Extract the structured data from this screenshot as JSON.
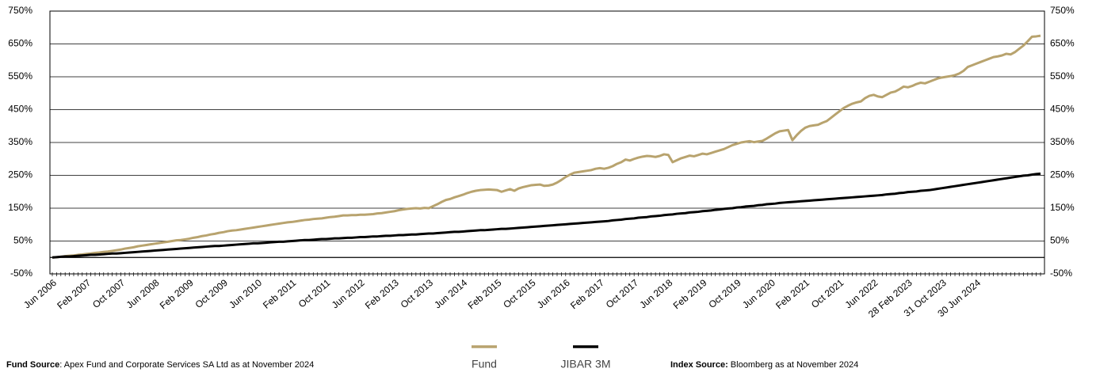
{
  "chart_data": {
    "type": "line",
    "categories": [
      "Jun 2006",
      null,
      null,
      null,
      null,
      null,
      null,
      null,
      "Feb 2007",
      null,
      null,
      null,
      null,
      null,
      null,
      null,
      "Oct 2007",
      null,
      null,
      null,
      null,
      null,
      null,
      null,
      "Jun 2008",
      null,
      null,
      null,
      null,
      null,
      null,
      null,
      "Feb 2009",
      null,
      null,
      null,
      null,
      null,
      null,
      null,
      "Oct 2009",
      null,
      null,
      null,
      null,
      null,
      null,
      null,
      "Jun 2010",
      null,
      null,
      null,
      null,
      null,
      null,
      null,
      "Feb 2011",
      null,
      null,
      null,
      null,
      null,
      null,
      null,
      "Oct 2011",
      null,
      null,
      null,
      null,
      null,
      null,
      null,
      "Jun 2012",
      null,
      null,
      null,
      null,
      null,
      null,
      null,
      "Feb 2013",
      null,
      null,
      null,
      null,
      null,
      null,
      null,
      "Oct 2013",
      null,
      null,
      null,
      null,
      null,
      null,
      null,
      "Jun 2014",
      null,
      null,
      null,
      null,
      null,
      null,
      null,
      "Feb 2015",
      null,
      null,
      null,
      null,
      null,
      null,
      null,
      "Oct 2015",
      null,
      null,
      null,
      null,
      null,
      null,
      null,
      "Jun 2016",
      null,
      null,
      null,
      null,
      null,
      null,
      null,
      "Feb 2017",
      null,
      null,
      null,
      null,
      null,
      null,
      null,
      "Oct 2017",
      null,
      null,
      null,
      null,
      null,
      null,
      null,
      "Jun 2018",
      null,
      null,
      null,
      null,
      null,
      null,
      null,
      "Feb 2019",
      null,
      null,
      null,
      null,
      null,
      null,
      null,
      "Oct 2019",
      null,
      null,
      null,
      null,
      null,
      null,
      null,
      "Jun 2020",
      null,
      null,
      null,
      null,
      null,
      null,
      null,
      "Feb 2021",
      null,
      null,
      null,
      null,
      null,
      null,
      null,
      "Oct 2021",
      null,
      null,
      null,
      null,
      null,
      null,
      null,
      "Jun 2022",
      null,
      null,
      null,
      null,
      null,
      null,
      null,
      "28 Feb 2023",
      null,
      null,
      null,
      null,
      null,
      null,
      null,
      "31 Oct 2023",
      null,
      null,
      null,
      null,
      null,
      null,
      null,
      "30 Jun 2024",
      null,
      null,
      null,
      null,
      null,
      null,
      null,
      null,
      null,
      null,
      null,
      null,
      null,
      null,
      null
    ],
    "series": [
      {
        "name": "Fund",
        "color": "#b8a36e",
        "values": [
          0,
          1,
          2,
          4,
          5,
          6,
          8,
          9,
          11,
          12,
          14,
          15,
          17,
          18,
          20,
          22,
          24,
          27,
          29,
          31,
          34,
          36,
          38,
          40,
          42,
          44,
          46,
          48,
          50,
          52,
          53,
          55,
          57,
          60,
          62,
          65,
          67,
          70,
          72,
          75,
          77,
          80,
          82,
          83,
          85,
          87,
          89,
          91,
          93,
          95,
          97,
          99,
          101,
          103,
          105,
          107,
          108,
          110,
          112,
          114,
          115,
          117,
          118,
          119,
          121,
          123,
          124,
          126,
          128,
          128,
          129,
          129,
          130,
          130,
          131,
          132,
          134,
          135,
          137,
          139,
          141,
          144,
          146,
          148,
          149,
          150,
          149,
          151,
          150,
          156,
          162,
          169,
          175,
          178,
          183,
          187,
          191,
          196,
          200,
          203,
          205,
          206,
          207,
          206,
          205,
          200,
          204,
          208,
          203,
          210,
          214,
          217,
          220,
          221,
          222,
          218,
          219,
          222,
          228,
          236,
          245,
          252,
          258,
          260,
          262,
          264,
          266,
          270,
          272,
          270,
          273,
          278,
          285,
          290,
          298,
          295,
          300,
          304,
          307,
          309,
          308,
          306,
          309,
          314,
          312,
          290,
          296,
          302,
          306,
          310,
          308,
          312,
          316,
          314,
          318,
          322,
          326,
          330,
          336,
          342,
          346,
          350,
          352,
          354,
          351,
          353,
          355,
          362,
          370,
          378,
          384,
          386,
          388,
          357,
          372,
          385,
          395,
          400,
          402,
          404,
          410,
          415,
          425,
          435,
          445,
          455,
          462,
          468,
          472,
          475,
          485,
          492,
          495,
          490,
          488,
          495,
          502,
          505,
          512,
          520,
          518,
          522,
          528,
          532,
          530,
          535,
          540,
          545,
          548,
          550,
          552,
          555,
          560,
          568,
          580,
          585,
          590,
          595,
          600,
          605,
          610,
          612,
          615,
          620,
          618,
          625,
          635,
          645,
          658,
          672,
          673,
          675
        ]
      },
      {
        "name": "JIBAR 3M",
        "color": "#000000",
        "values": [
          0,
          1,
          2,
          3,
          3,
          4,
          5,
          6,
          7,
          8,
          8,
          9,
          10,
          11,
          12,
          12,
          13,
          14,
          15,
          16,
          17,
          18,
          19,
          20,
          21,
          22,
          23,
          24,
          25,
          26,
          27,
          28,
          29,
          30,
          31,
          32,
          33,
          34,
          35,
          35,
          36,
          37,
          38,
          39,
          40,
          41,
          42,
          43,
          43,
          44,
          45,
          46,
          47,
          48,
          48,
          49,
          50,
          51,
          52,
          53,
          53,
          54,
          55,
          56,
          56,
          57,
          58,
          58,
          59,
          60,
          60,
          61,
          62,
          62,
          63,
          64,
          64,
          65,
          66,
          66,
          67,
          68,
          68,
          69,
          70,
          70,
          71,
          72,
          73,
          73,
          74,
          75,
          76,
          77,
          78,
          78,
          79,
          80,
          81,
          82,
          83,
          83,
          84,
          85,
          86,
          87,
          87,
          88,
          89,
          90,
          91,
          92,
          93,
          94,
          95,
          96,
          97,
          98,
          99,
          100,
          101,
          102,
          103,
          104,
          105,
          106,
          107,
          108,
          109,
          110,
          111,
          113,
          114,
          115,
          117,
          118,
          119,
          121,
          122,
          123,
          125,
          126,
          127,
          129,
          130,
          131,
          133,
          134,
          135,
          137,
          138,
          139,
          141,
          142,
          143,
          145,
          146,
          148,
          149,
          150,
          152,
          153,
          155,
          156,
          157,
          159,
          160,
          162,
          163,
          164,
          166,
          167,
          168,
          169,
          170,
          171,
          172,
          173,
          174,
          175,
          176,
          177,
          178,
          179,
          180,
          181,
          182,
          183,
          184,
          185,
          186,
          187,
          188,
          189,
          190,
          192,
          193,
          194,
          196,
          197,
          199,
          200,
          201,
          203,
          204,
          205,
          207,
          209,
          211,
          213,
          215,
          217,
          219,
          221,
          223,
          225,
          227,
          229,
          231,
          233,
          235,
          237,
          239,
          241,
          243,
          245,
          247,
          249,
          250,
          252,
          254,
          255
        ]
      }
    ],
    "ylim": [
      -50,
      750
    ],
    "yticks": [
      {
        "value": -50,
        "label": "-50%"
      },
      {
        "value": 50,
        "label": "50%"
      },
      {
        "value": 150,
        "label": "150%"
      },
      {
        "value": 250,
        "label": "250%"
      },
      {
        "value": 350,
        "label": "350%"
      },
      {
        "value": 450,
        "label": "450%"
      },
      {
        "value": 550,
        "label": "550%"
      },
      {
        "value": 650,
        "label": "650%"
      },
      {
        "value": 750,
        "label": "750%"
      }
    ],
    "y2lim": [
      -50,
      750
    ],
    "y2ticks": [
      {
        "value": -50,
        "label": "-50%"
      },
      {
        "value": 50,
        "label": "50%"
      },
      {
        "value": 150,
        "label": "150%"
      },
      {
        "value": 250,
        "label": "250%"
      },
      {
        "value": 350,
        "label": "350%"
      },
      {
        "value": 450,
        "label": "450%"
      },
      {
        "value": 550,
        "label": "550%"
      },
      {
        "value": 650,
        "label": "650%"
      },
      {
        "value": 750,
        "label": "750%"
      }
    ],
    "grid": true,
    "legend": "bottom",
    "fund_source_label": "Fund Source",
    "fund_source_text": ": Apex Fund and Corporate Services SA Ltd as at November 2024",
    "index_source_label": "Index Source:",
    "index_source_text": " Bloomberg as at November 2024"
  }
}
